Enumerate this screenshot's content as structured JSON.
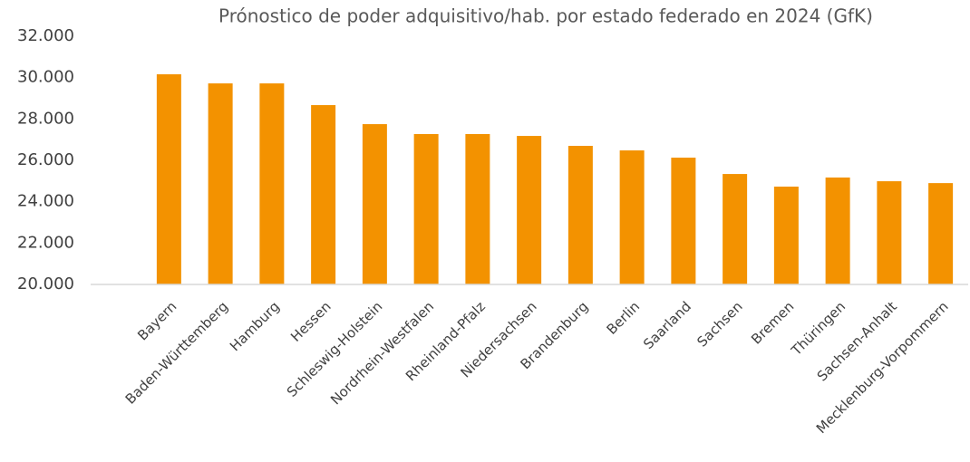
{
  "chart_data": {
    "type": "bar",
    "title": "Prónostico de poder adquisitivo/hab. por estado federado en 2024 (GfK)",
    "categories": [
      "Bayern",
      "Baden-Württemberg",
      "Hamburg",
      "Hessen",
      "Schleswig-Holstein",
      "Nordrhein-Westfalen",
      "Rheinland-Pfalz",
      "Niedersachsen",
      "Brandenburg",
      "Berlin",
      "Saarland",
      "Sachsen",
      "Bremen",
      "Thüringen",
      "Sachsen-Anhalt",
      "Mecklenburg-Vorpommern"
    ],
    "values": [
      30160,
      29720,
      29720,
      28670,
      27750,
      27270,
      27270,
      27180,
      26700,
      26480,
      26130,
      25340,
      24730,
      25170,
      24990,
      24900
    ],
    "color": "#f39200",
    "ylim": [
      20000,
      32000
    ],
    "yticks": [
      {
        "value": 20000,
        "label": "20.000"
      },
      {
        "value": 22000,
        "label": "22.000"
      },
      {
        "value": 24000,
        "label": "24.000"
      },
      {
        "value": 26000,
        "label": "26.000"
      },
      {
        "value": 28000,
        "label": "28.000"
      },
      {
        "value": 30000,
        "label": "30.000"
      },
      {
        "value": 32000,
        "label": "32.000"
      }
    ],
    "grid": false
  }
}
